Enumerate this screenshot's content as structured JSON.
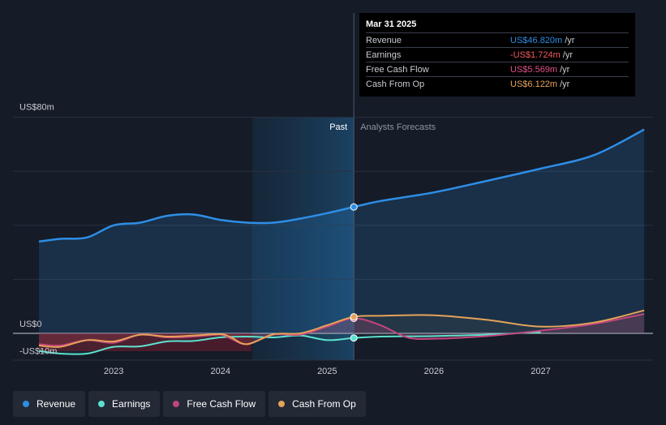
{
  "chart_data": {
    "type": "line",
    "y_axis": {
      "top_label": "US$80m",
      "zero_label": "US$0",
      "neg_label": "-US$10m",
      "ylim": [
        -10,
        80
      ]
    },
    "x_axis": {
      "ticks": [
        "2023",
        "2024",
        "2025",
        "2026",
        "2027"
      ],
      "xlim": [
        2022.3,
        2027.97
      ]
    },
    "sections": {
      "past_label": "Past",
      "forecast_label": "Analysts Forecasts",
      "divider_x": 2025.25
    },
    "series": [
      {
        "name": "Revenue",
        "color": "#2e8ee6",
        "x": [
          2022.3,
          2022.5,
          2022.75,
          2023.0,
          2023.25,
          2023.5,
          2023.75,
          2024.0,
          2024.25,
          2024.5,
          2024.75,
          2025.0,
          2025.25,
          2025.5,
          2026.0,
          2026.5,
          2027.0,
          2027.5,
          2027.97
        ],
        "y": [
          34,
          35,
          35.5,
          40,
          41,
          43.5,
          44,
          42,
          41,
          41,
          42.5,
          44.5,
          46.8,
          49,
          52.2,
          56.5,
          61,
          66,
          75.5
        ]
      },
      {
        "name": "Earnings",
        "color": "#5ce1cf",
        "x": [
          2022.3,
          2022.5,
          2022.75,
          2023.0,
          2023.25,
          2023.5,
          2023.75,
          2024.0,
          2024.25,
          2024.5,
          2024.75,
          2025.0,
          2025.25,
          2025.5,
          2026.0,
          2026.5,
          2027.0
        ],
        "y": [
          -6.5,
          -7.5,
          -7.5,
          -5,
          -4.8,
          -3,
          -2.8,
          -1.5,
          -1.2,
          -1.5,
          -0.8,
          -2.5,
          -1.724,
          -1.2,
          -1.0,
          -0.5,
          0.5
        ]
      },
      {
        "name": "Free Cash Flow",
        "color": "#c2457d",
        "x": [
          2022.3,
          2022.5,
          2022.75,
          2023.0,
          2023.25,
          2023.5,
          2023.75,
          2024.0,
          2024.1,
          2024.25,
          2024.5,
          2024.75,
          2025.0,
          2025.25,
          2025.5,
          2025.75,
          2026.0,
          2026.5,
          2027.0,
          2027.5,
          2027.97
        ],
        "y": [
          -4,
          -4.5,
          -2.5,
          -3.5,
          -0.5,
          -1.5,
          -1.2,
          -0.5,
          -2,
          -4,
          -0.5,
          -0.5,
          2.5,
          5.569,
          3,
          -1.5,
          -2,
          -1,
          1,
          3.5,
          7.2
        ]
      },
      {
        "name": "Cash From Op",
        "color": "#e5a259",
        "x": [
          2022.3,
          2022.5,
          2022.75,
          2023.0,
          2023.25,
          2023.5,
          2023.75,
          2024.0,
          2024.1,
          2024.25,
          2024.5,
          2024.75,
          2025.0,
          2025.25,
          2025.5,
          2026.0,
          2026.5,
          2027.0,
          2027.5,
          2027.97
        ],
        "y": [
          -4.5,
          -5,
          -2.5,
          -3,
          -0.5,
          -1.2,
          -0.8,
          -0.3,
          -1.5,
          -4,
          -0.3,
          0,
          3,
          6.122,
          6.5,
          6.7,
          5,
          2.5,
          4,
          8.5
        ]
      }
    ]
  },
  "tooltip": {
    "date": "Mar 31 2025",
    "rows": [
      {
        "label": "Revenue",
        "value": "US$46.820m",
        "unit": "/yr",
        "color": "#2e8ee6"
      },
      {
        "label": "Earnings",
        "value": "-US$1.724m",
        "unit": "/yr",
        "color": "#f0585c"
      },
      {
        "label": "Free Cash Flow",
        "value": "US$5.569m",
        "unit": "/yr",
        "color": "#e24f8b"
      },
      {
        "label": "Cash From Op",
        "value": "US$6.122m",
        "unit": "/yr",
        "color": "#e5a259"
      }
    ]
  },
  "legend": [
    {
      "label": "Revenue",
      "color": "#2e8ee6"
    },
    {
      "label": "Earnings",
      "color": "#5ce1cf"
    },
    {
      "label": "Free Cash Flow",
      "color": "#c2457d"
    },
    {
      "label": "Cash From Op",
      "color": "#e5a259"
    }
  ]
}
